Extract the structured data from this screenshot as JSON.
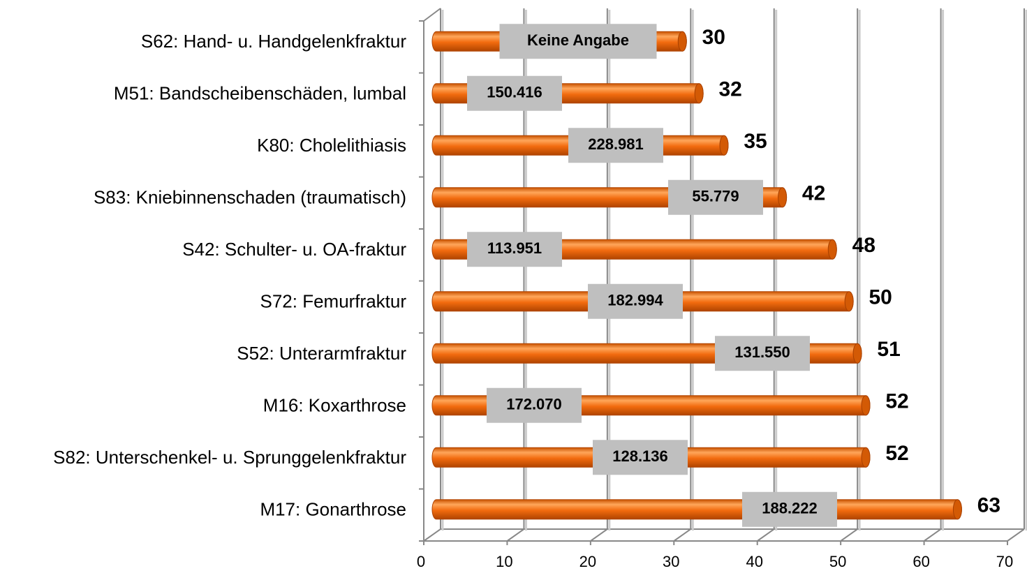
{
  "chart_data": {
    "type": "bar",
    "orientation": "horizontal",
    "categories": [
      "S62: Hand- u. Handgelenkfraktur",
      "M51: Bandscheibenschäden, lumbal",
      "K80: Cholelithiasis",
      "S83: Kniebinnenschaden (traumatisch)",
      "S42: Schulter- u. OA-fraktur",
      "S72: Femurfraktur",
      "S52: Unterarmfraktur",
      "M16: Koxarthrose",
      "S82: Unterschenkel- u. Sprunggelenkfraktur",
      "M17: Gonarthrose"
    ],
    "values": [
      30,
      32,
      35,
      42,
      48,
      50,
      51,
      52,
      52,
      63
    ],
    "annotations": [
      "Keine Angabe",
      "150.416",
      "228.981",
      "55.779",
      "113.951",
      "182.994",
      "131.550",
      "172.070",
      "128.136",
      "188.222"
    ],
    "color": "#f26b0f",
    "xlim": [
      0,
      70
    ],
    "xticks": [
      0,
      10,
      20,
      30,
      40,
      50,
      60,
      70
    ],
    "grid": true
  }
}
